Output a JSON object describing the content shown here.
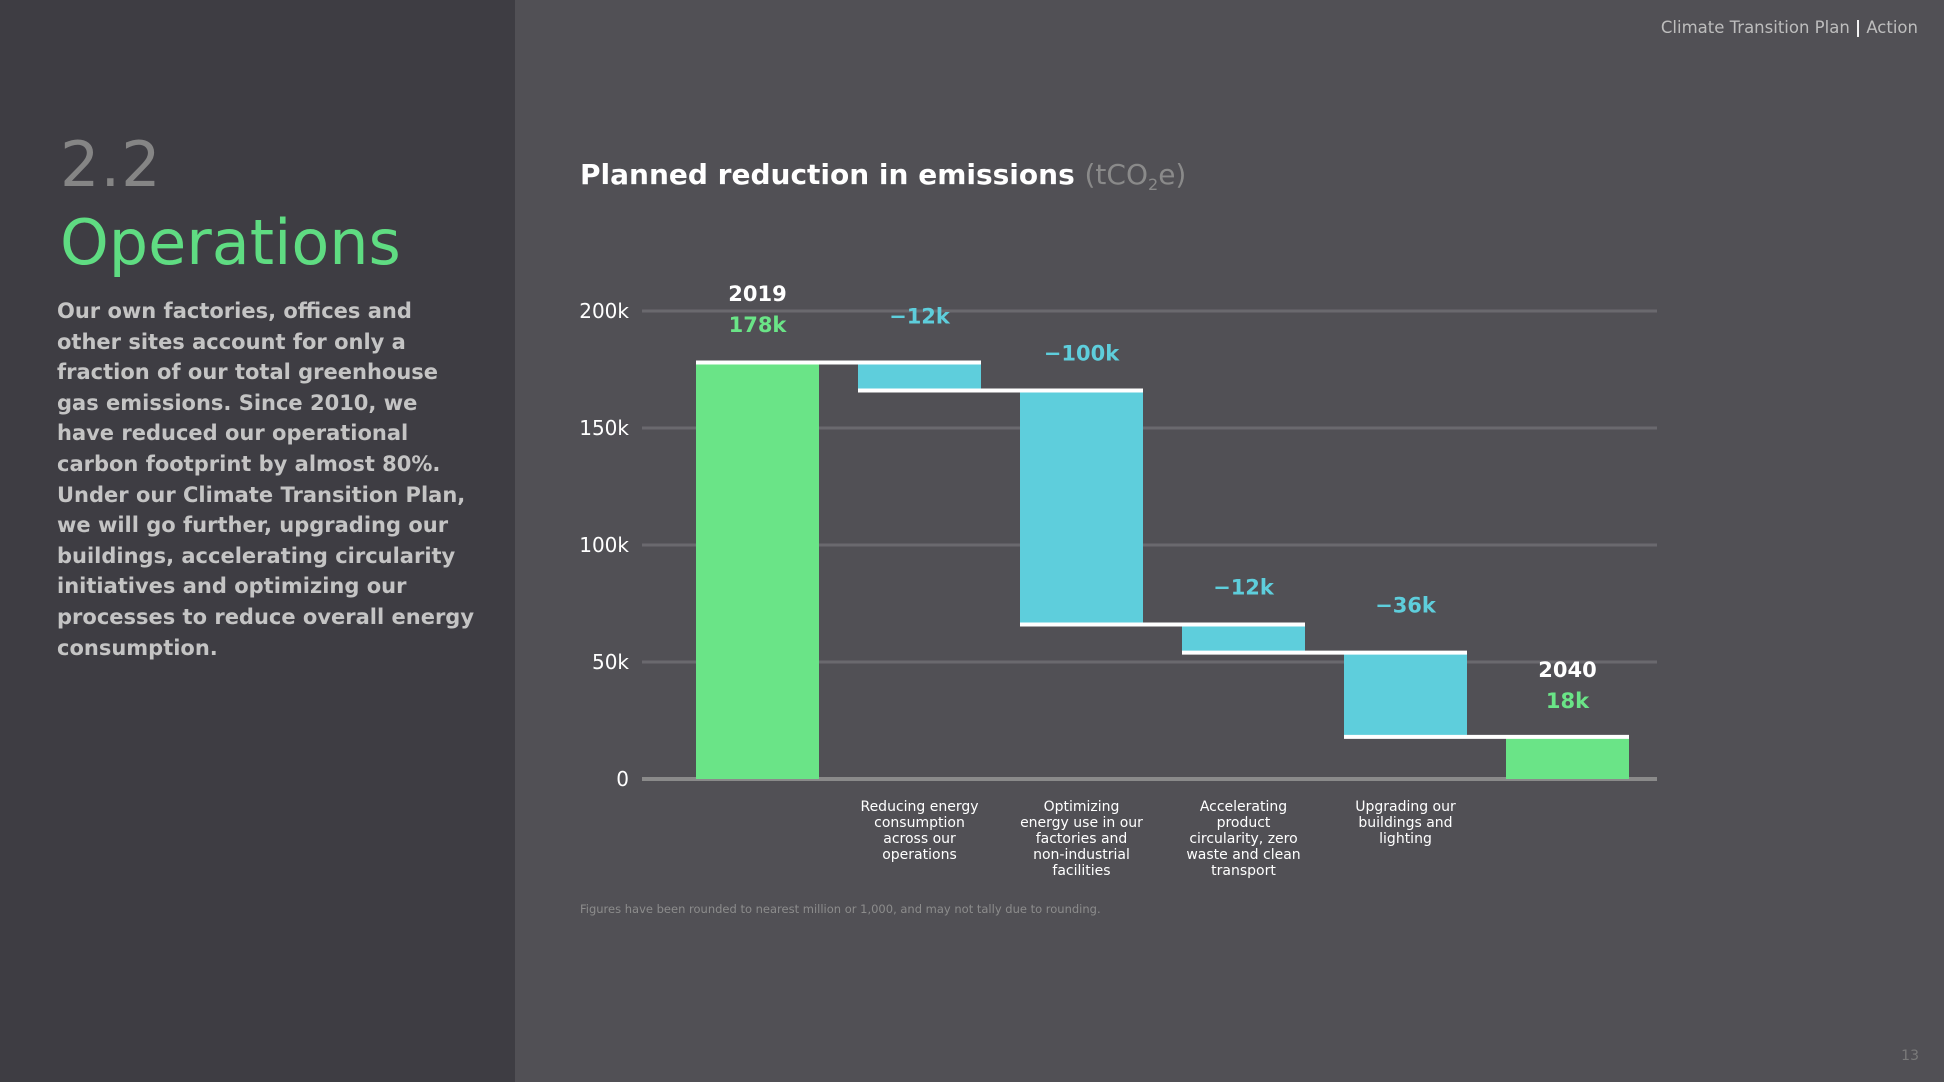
{
  "header": {
    "doc": "Climate Transition Plan",
    "separator": "|",
    "section": "Action"
  },
  "left": {
    "section_number": "2.2",
    "section_title": "Operations",
    "intro": "Our own factories, offices and other sites account for only a fraction of our total greenhouse gas emissions. Since 2010, we have reduced our operational carbon footprint by almost 80%. Under our Climate Transition Plan, we will go further, upgrading our buildings, accelerating circularity initiatives and optimizing our processes to reduce overall energy consumption."
  },
  "chart_title": {
    "main": "Planned reduction in emissions",
    "unit_open": "(tCO",
    "unit_sub": "2",
    "unit_close": "e)"
  },
  "footnote": "Figures have been rounded to nearest million or 1,000, and may not tally due to rounding.",
  "page_number": "13",
  "colors": {
    "total": "#6ae487",
    "reduction": "#5ecedc",
    "grid": "#6a696e",
    "axis": "#8a8a8a",
    "connector": "#ffffff"
  },
  "chart_data": {
    "type": "bar",
    "subtype": "waterfall",
    "title": "Planned reduction in emissions (tCO2e)",
    "ylabel": "tCO2e",
    "ylim": [
      0,
      200000
    ],
    "yticks": [
      0,
      50000,
      100000,
      150000,
      200000
    ],
    "ytick_labels": [
      "0",
      "50k",
      "100k",
      "150k",
      "200k"
    ],
    "grid": true,
    "steps": [
      {
        "kind": "total",
        "top_label": "2019",
        "value_label": "178k",
        "value": 178000,
        "category": ""
      },
      {
        "kind": "delta",
        "value_label": "−12k",
        "value": -12000,
        "category": "Reducing energy consumption across our operations",
        "category_lines": [
          "Reducing energy",
          "consumption",
          "across our",
          "operations"
        ]
      },
      {
        "kind": "delta",
        "value_label": "−100k",
        "value": -100000,
        "category": "Optimizing energy use in our factories and non-industrial facilities",
        "category_lines": [
          "Optimizing",
          "energy use in our",
          "factories and",
          "non-industrial",
          "facilities"
        ]
      },
      {
        "kind": "delta",
        "value_label": "−12k",
        "value": -12000,
        "category": "Accelerating product circularity, zero waste and clean transport",
        "category_lines": [
          "Accelerating",
          "product",
          "circularity, zero",
          "waste and clean",
          "transport"
        ]
      },
      {
        "kind": "delta",
        "value_label": "−36k",
        "value": -36000,
        "category": "Upgrading our buildings and lighting",
        "category_lines": [
          "Upgrading our",
          "buildings and",
          "lighting"
        ]
      },
      {
        "kind": "total",
        "top_label": "2040",
        "value_label": "18k",
        "value": 18000,
        "category": ""
      }
    ]
  }
}
